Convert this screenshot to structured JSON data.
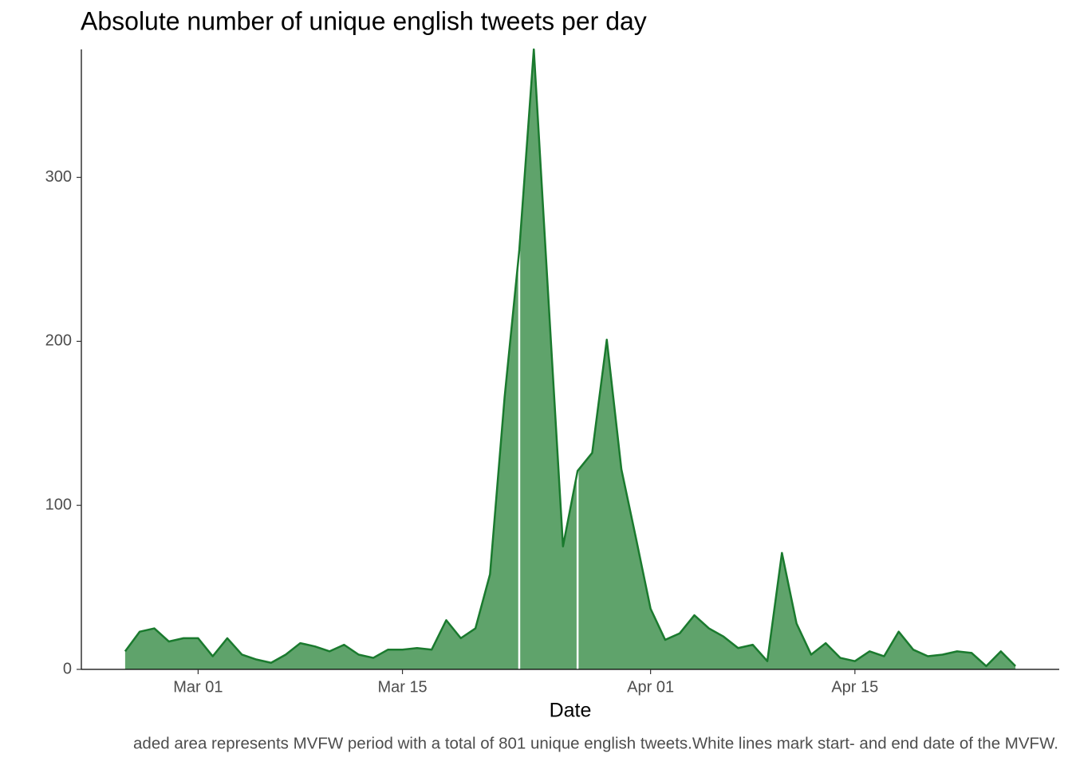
{
  "chart_data": {
    "type": "area",
    "title": "Absolute number of unique english tweets per day",
    "x_label": "Date",
    "caption": "aded area represents MVFW period with a total of 801 unique english tweets.White lines mark start- and end date of the MVFW.",
    "x": [
      "02-25",
      "02-26",
      "02-27",
      "02-28",
      "02-29",
      "03-01",
      "03-02",
      "03-03",
      "03-04",
      "03-05",
      "03-06",
      "03-07",
      "03-08",
      "03-09",
      "03-10",
      "03-11",
      "03-12",
      "03-13",
      "03-14",
      "03-15",
      "03-16",
      "03-17",
      "03-18",
      "03-19",
      "03-20",
      "03-21",
      "03-22",
      "03-23",
      "03-24",
      "03-25",
      "03-26",
      "03-27",
      "03-28",
      "03-29",
      "03-30",
      "03-31",
      "04-01",
      "04-02",
      "04-03",
      "04-04",
      "04-05",
      "04-06",
      "04-07",
      "04-08",
      "04-09",
      "04-10",
      "04-11",
      "04-12",
      "04-13",
      "04-14",
      "04-15",
      "04-16",
      "04-17",
      "04-18",
      "04-19",
      "04-20",
      "04-21",
      "04-22",
      "04-23",
      "04-24",
      "04-25",
      "04-26"
    ],
    "values": [
      11,
      23,
      25,
      17,
      19,
      19,
      8,
      19,
      9,
      6,
      4,
      9,
      16,
      14,
      11,
      15,
      9,
      7,
      12,
      12,
      13,
      12,
      30,
      19,
      25,
      58,
      166,
      255,
      378,
      226,
      75,
      121,
      132,
      201,
      122,
      80,
      37,
      18,
      22,
      33,
      25,
      20,
      13,
      15,
      5,
      71,
      28,
      9,
      16,
      7,
      5,
      11,
      8,
      23,
      12,
      8,
      9,
      11,
      10,
      2,
      11,
      2
    ],
    "color": "#1a7a2e",
    "fill": "#5fa36b",
    "vlines": [
      "03-23",
      "03-27"
    ],
    "vline_color": "#ffffff",
    "xlim": [
      "02-22",
      "04-29"
    ],
    "xticks": [
      {
        "value": "03-01",
        "label": "Mar 01"
      },
      {
        "value": "03-15",
        "label": "Mar 15"
      },
      {
        "value": "04-01",
        "label": "Apr 01"
      },
      {
        "value": "04-15",
        "label": "Apr 15"
      }
    ],
    "ylim": [
      0,
      378
    ],
    "yticks": [
      0,
      100,
      200,
      300
    ]
  }
}
